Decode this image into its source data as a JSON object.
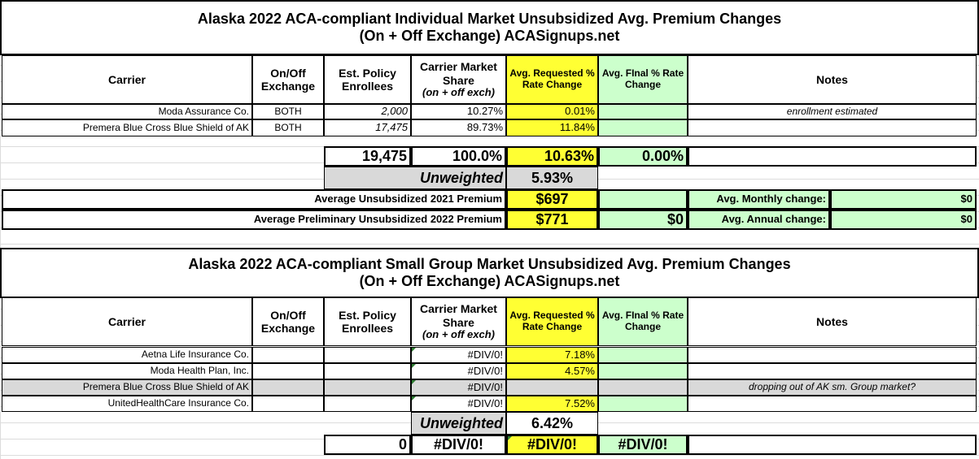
{
  "individual": {
    "title_line1": "Alaska 2022 ACA-compliant Individual Market Unsubsidized Avg. Premium Changes",
    "title_line2": "(On + Off Exchange) ACASignups.net",
    "headers": {
      "carrier": "Carrier",
      "exchange": "On/Off Exchange",
      "enrollees": "Est. Policy Enrollees",
      "share": "Carrier Market Share",
      "share_sub": "(on + off exch)",
      "requested": "Avg. Requested % Rate Change",
      "final": "Avg. FInal % Rate Change",
      "notes": "Notes"
    },
    "rows": [
      {
        "carrier": "Moda Assurance Co.",
        "exchange": "BOTH",
        "enrollees": "2,000",
        "share": "10.27%",
        "requested": "0.01%",
        "final": "",
        "notes": "enrollment estimated"
      },
      {
        "carrier": "Premera Blue Cross Blue Shield of AK",
        "exchange": "BOTH",
        "enrollees": "17,475",
        "share": "89.73%",
        "requested": "11.84%",
        "final": "",
        "notes": ""
      }
    ],
    "totals": {
      "enrollees": "19,475",
      "share": "100.0%",
      "requested": "10.63%",
      "final": "0.00%"
    },
    "unweighted_label": "Unweighted",
    "unweighted_value": "5.93%",
    "premium_2021_label": "Average Unsubsidized 2021 Premium",
    "premium_2021": "$697",
    "premium_2022_label": "Average Preliminary Unsubsidized 2022 Premium",
    "premium_2022": "$771",
    "premium_2022_final": "$0",
    "monthly_label": "Avg. Monthly change:",
    "monthly_value": "$0",
    "annual_label": "Avg. Annual change:",
    "annual_value": "$0"
  },
  "small_group": {
    "title_line1": "Alaska 2022 ACA-compliant Small Group Market Unsubsidized Avg. Premium Changes",
    "title_line2": "(On + Off Exchange) ACASignups.net",
    "rows": [
      {
        "carrier": "Aetna Life Insurance Co.",
        "share": "#DIV/0!",
        "requested": "7.18%",
        "notes": ""
      },
      {
        "carrier": "Moda Health Plan, Inc.",
        "share": "#DIV/0!",
        "requested": "4.57%",
        "notes": ""
      },
      {
        "carrier": "Premera Blue Cross Blue Shield of AK",
        "share": "#DIV/0!",
        "requested": "",
        "notes": "dropping out of AK sm. Group market?"
      },
      {
        "carrier": "UnitedHealthCare Insurance Co.",
        "share": "#DIV/0!",
        "requested": "7.52%",
        "notes": ""
      }
    ],
    "unweighted_label": "Unweighted",
    "unweighted_value": "6.42%",
    "totals": {
      "enrollees": "0",
      "share": "#DIV/0!",
      "requested": "#DIV/0!",
      "final": "#DIV/0!"
    }
  },
  "colors": {
    "requested": "#ffff33",
    "final": "#ccffcc",
    "dropped_row": "#d9d9d9"
  }
}
